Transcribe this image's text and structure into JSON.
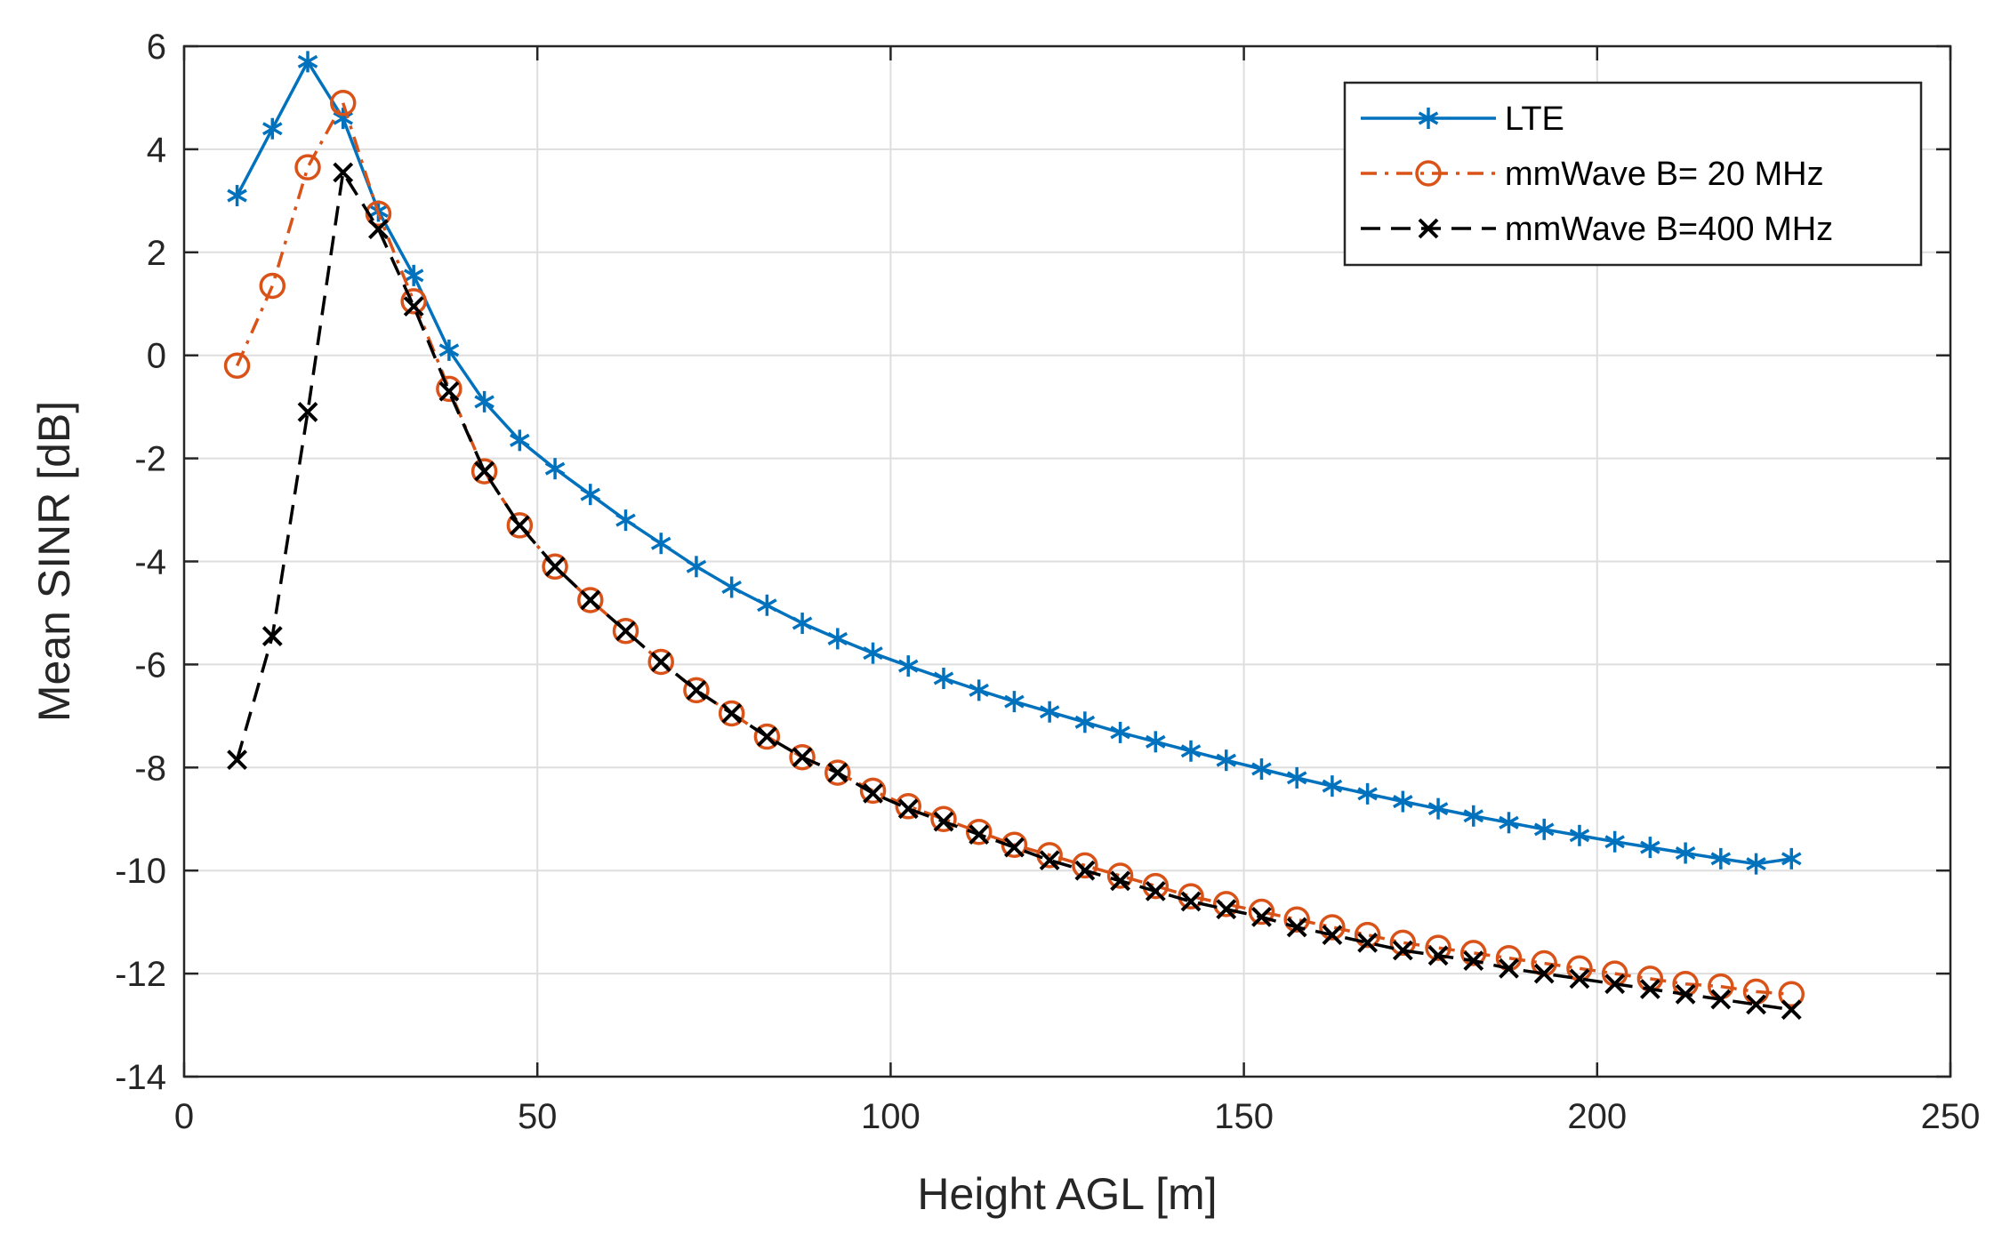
{
  "chart_data": {
    "type": "line",
    "xlabel": "Height AGL [m]",
    "ylabel": "Mean SINR [dB]",
    "xlim": [
      0,
      250
    ],
    "ylim": [
      -14,
      6
    ],
    "xticks": [
      0,
      50,
      100,
      150,
      200,
      250
    ],
    "yticks": [
      -14,
      -12,
      -10,
      -8,
      -6,
      -4,
      -2,
      0,
      2,
      4,
      6
    ],
    "grid": true,
    "legend_position": "top-right",
    "x": [
      7.5,
      12.5,
      17.5,
      22.5,
      27.5,
      32.5,
      37.5,
      42.5,
      47.5,
      52.5,
      57.5,
      62.5,
      67.5,
      72.5,
      77.5,
      82.5,
      87.5,
      92.5,
      97.5,
      102.5,
      107.5,
      112.5,
      117.5,
      122.5,
      127.5,
      132.5,
      137.5,
      142.5,
      147.5,
      152.5,
      157.5,
      162.5,
      167.5,
      172.5,
      177.5,
      182.5,
      187.5,
      192.5,
      197.5,
      202.5,
      207.5,
      212.5,
      217.5,
      222.5,
      227.5
    ],
    "series": [
      {
        "name": "LTE",
        "color": "#0072bd",
        "line_style": "solid",
        "marker": "asterisk",
        "values": [
          3.1,
          4.4,
          5.7,
          4.6,
          2.8,
          1.55,
          0.1,
          -0.9,
          -1.65,
          -2.2,
          -2.7,
          -3.2,
          -3.65,
          -4.1,
          -4.5,
          -4.85,
          -5.2,
          -5.5,
          -5.78,
          -6.03,
          -6.27,
          -6.5,
          -6.72,
          -6.92,
          -7.12,
          -7.32,
          -7.5,
          -7.68,
          -7.86,
          -8.03,
          -8.2,
          -8.36,
          -8.51,
          -8.66,
          -8.8,
          -8.94,
          -9.07,
          -9.2,
          -9.32,
          -9.44,
          -9.55,
          -9.66,
          -9.77,
          -9.87,
          -9.77
        ]
      },
      {
        "name": "mmWave B= 20 MHz",
        "color": "#d95319",
        "line_style": "dashdot",
        "marker": "circle",
        "values": [
          -0.2,
          1.35,
          3.65,
          4.9,
          2.75,
          1.05,
          -0.65,
          -2.25,
          -3.3,
          -4.1,
          -4.75,
          -5.35,
          -5.95,
          -6.5,
          -6.95,
          -7.4,
          -7.8,
          -8.1,
          -8.45,
          -8.75,
          -9.0,
          -9.25,
          -9.5,
          -9.7,
          -9.9,
          -10.1,
          -10.3,
          -10.5,
          -10.65,
          -10.8,
          -10.95,
          -11.1,
          -11.25,
          -11.4,
          -11.5,
          -11.6,
          -11.7,
          -11.8,
          -11.9,
          -12.0,
          -12.1,
          -12.2,
          -12.25,
          -12.35,
          -12.4
        ]
      },
      {
        "name": "mmWave B=400 MHz",
        "color": "#000000",
        "line_style": "dashed",
        "marker": "x",
        "values": [
          -7.85,
          -5.45,
          -1.1,
          3.55,
          2.45,
          0.95,
          -0.7,
          -2.25,
          -3.3,
          -4.1,
          -4.75,
          -5.35,
          -5.95,
          -6.5,
          -6.95,
          -7.4,
          -7.8,
          -8.1,
          -8.5,
          -8.8,
          -9.05,
          -9.3,
          -9.55,
          -9.8,
          -10.0,
          -10.2,
          -10.4,
          -10.6,
          -10.75,
          -10.9,
          -11.1,
          -11.25,
          -11.4,
          -11.55,
          -11.65,
          -11.75,
          -11.9,
          -12.0,
          -12.1,
          -12.2,
          -12.3,
          -12.4,
          -12.5,
          -12.6,
          -12.7
        ]
      }
    ]
  }
}
